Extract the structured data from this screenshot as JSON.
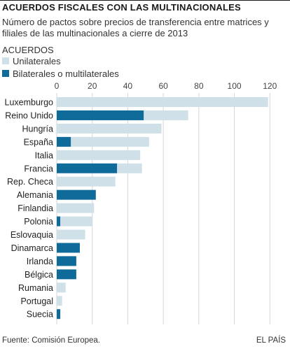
{
  "header": {
    "title": "ACUERDOS FISCALES CON LAS MULTINACIONALES",
    "subtitle": "Número de pactos sobre precios de transferencia entre matrices y filiales de las multinacionales a cierre de 2013"
  },
  "legend": {
    "title": "ACUERDOS",
    "items": [
      {
        "label": "Unilaterales",
        "color": "#cfe0e8"
      },
      {
        "label": "Bilaterales o multilaterales",
        "color": "#0e6b9a"
      }
    ]
  },
  "chart_data": {
    "type": "bar",
    "orientation": "horizontal",
    "stacked": true,
    "categories": [
      "Luxemburgo",
      "Reino Unido",
      "Hungría",
      "España",
      "Italia",
      "Francia",
      "Rep. Checa",
      "Alemania",
      "Finlandia",
      "Polonia",
      "Eslovaquia",
      "Dinamarca",
      "Irlanda",
      "Bélgica",
      "Rumania",
      "Portugal",
      "Suecia"
    ],
    "series": [
      {
        "name": "Bilaterales o multilaterales",
        "color": "#0e6b9a",
        "values": [
          0,
          49,
          0,
          8,
          0,
          34,
          0,
          22,
          0,
          2,
          0,
          13,
          11,
          11,
          0,
          0,
          2
        ]
      },
      {
        "name": "Unilaterales",
        "color": "#cfe0e8",
        "values": [
          119,
          25,
          59,
          44,
          47,
          14,
          33,
          0,
          21,
          18,
          16,
          0,
          0,
          0,
          5,
          3,
          0
        ]
      }
    ],
    "xticks": [
      0,
      20,
      40,
      60,
      80,
      100,
      120
    ],
    "xlim": [
      0,
      127
    ],
    "grid": true
  },
  "footer": {
    "source": "Fuente: Comisión Europea.",
    "brand": "EL PAÍS"
  }
}
